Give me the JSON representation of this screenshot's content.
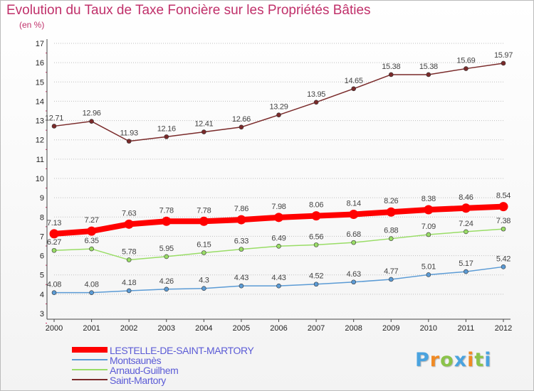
{
  "title": "Evolution du Taux de Taxe Foncière sur les Propriétés Bâties",
  "unit": "(en %)",
  "logo": {
    "text": "Proxiti",
    "colors": [
      "#4aa3df",
      "#f08a24",
      "#8bc34a",
      "#4aa3df",
      "#f08a24",
      "#8bc34a",
      "#4aa3df"
    ]
  },
  "chart_data": {
    "type": "line",
    "title": "Evolution du Taux de Taxe Foncière sur les Propriétés Bâties",
    "ylabel": "(en %)",
    "xlabel": "",
    "x": [
      "2000",
      "2001",
      "2002",
      "2003",
      "2004",
      "2005",
      "2006",
      "2007",
      "2008",
      "2009",
      "2010",
      "2011",
      "2012"
    ],
    "ylim": [
      3,
      17
    ],
    "yticks": [
      "3",
      "4",
      "5",
      "6",
      "7",
      "8",
      "9",
      "10",
      "11",
      "12",
      "13",
      "14",
      "15",
      "16",
      "17"
    ],
    "grid": "horizontal, dotted",
    "legend_placement": "bottom-left",
    "series": [
      {
        "name": "LESTELLE-DE-SAINT-MARTORY",
        "color": "#ff0000",
        "emphasis": true,
        "values": [
          7.13,
          7.27,
          7.63,
          7.78,
          7.78,
          7.86,
          7.98,
          8.06,
          8.14,
          8.26,
          8.38,
          8.46,
          8.54
        ],
        "labels": [
          "7.13",
          "7.27",
          "7.63",
          "7.78",
          "7.78",
          "7.86",
          "7.98",
          "8.06",
          "8.14",
          "8.26",
          "8.38",
          "8.46",
          "8.54"
        ]
      },
      {
        "name": "Montsaunès",
        "color": "#5b9bd5",
        "emphasis": false,
        "values": [
          4.08,
          4.08,
          4.18,
          4.26,
          4.3,
          4.43,
          4.43,
          4.52,
          4.63,
          4.77,
          5.01,
          5.17,
          5.42
        ],
        "labels": [
          "4.08",
          "4.08",
          "4.18",
          "4.26",
          "4.3",
          "4.43",
          "4.43",
          "4.52",
          "4.63",
          "4.77",
          "5.01",
          "5.17",
          "5.42"
        ]
      },
      {
        "name": "Arnaud-Guilhem",
        "color": "#99dd66",
        "emphasis": false,
        "values": [
          6.27,
          6.35,
          5.78,
          5.95,
          6.15,
          6.33,
          6.49,
          6.56,
          6.68,
          6.88,
          7.09,
          7.24,
          7.38
        ],
        "labels": [
          "6.27",
          "6.35",
          "5.78",
          "5.95",
          "6.15",
          "6.33",
          "6.49",
          "6.56",
          "6.68",
          "6.88",
          "7.09",
          "7.24",
          "7.38"
        ]
      },
      {
        "name": "Saint-Martory",
        "color": "#7a2a2a",
        "emphasis": false,
        "values": [
          12.71,
          12.96,
          11.93,
          12.16,
          12.41,
          12.66,
          13.29,
          13.95,
          14.65,
          15.38,
          15.38,
          15.69,
          15.97
        ],
        "labels": [
          "12.71",
          "12.96",
          "11.93",
          "12.16",
          "12.41",
          "12.66",
          "13.29",
          "13.95",
          "14.65",
          "15.38",
          "15.38",
          "15.69",
          "15.97"
        ]
      }
    ]
  }
}
